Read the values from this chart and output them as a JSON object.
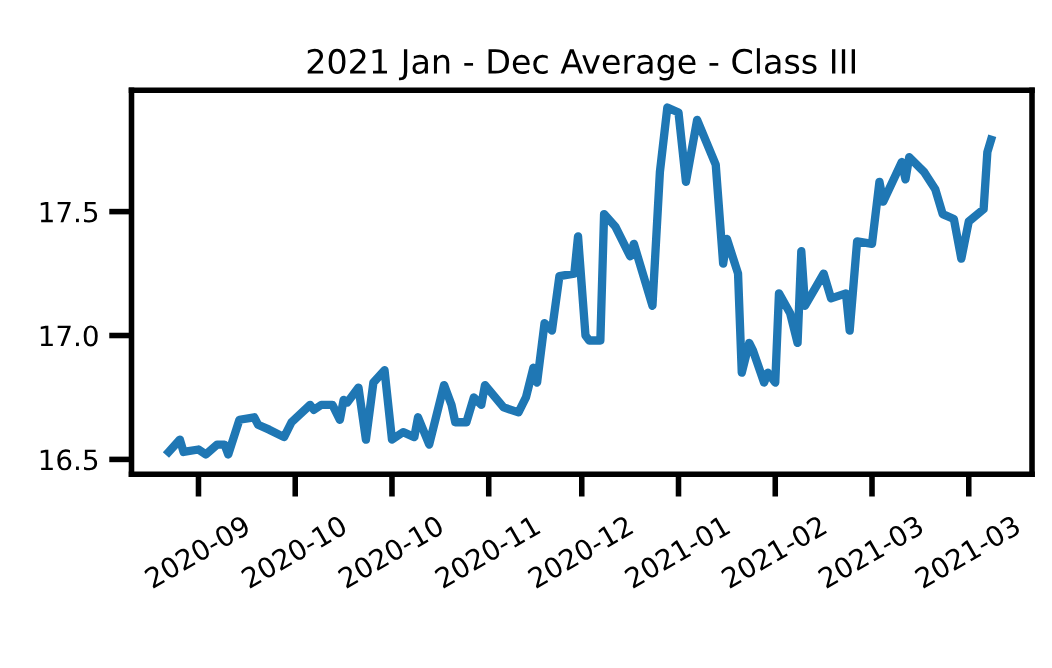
{
  "chart_data": {
    "type": "line",
    "title": "2021 Jan - Dec Average - Class III",
    "x": [
      "2020-08-28",
      "2020-08-31",
      "2020-09-01",
      "2020-09-05",
      "2020-09-07",
      "2020-09-10",
      "2020-09-12",
      "2020-09-13",
      "2020-09-16",
      "2020-09-20",
      "2020-09-21",
      "2020-09-24",
      "2020-09-28",
      "2020-09-30",
      "2020-10-05",
      "2020-10-06",
      "2020-10-08",
      "2020-10-11",
      "2020-10-13",
      "2020-10-14",
      "2020-10-15",
      "2020-10-18",
      "2020-10-20",
      "2020-10-22",
      "2020-10-25",
      "2020-10-27",
      "2020-10-30",
      "2020-11-02",
      "2020-11-03",
      "2020-11-06",
      "2020-11-10",
      "2020-11-12",
      "2020-11-13",
      "2020-11-16",
      "2020-11-18",
      "2020-11-20",
      "2020-11-21",
      "2020-11-26",
      "2020-11-30",
      "2020-12-02",
      "2020-12-04",
      "2020-12-05",
      "2020-12-07",
      "2020-12-09",
      "2020-12-11",
      "2020-12-15",
      "2020-12-16",
      "2020-12-18",
      "2020-12-19",
      "2020-12-22",
      "2020-12-23",
      "2020-12-26",
      "2020-12-30",
      "2020-12-31",
      "2021-01-05",
      "2021-01-07",
      "2021-01-09",
      "2021-01-12",
      "2021-01-14",
      "2021-01-17",
      "2021-01-22",
      "2021-01-24",
      "2021-01-25",
      "2021-01-28",
      "2021-01-29",
      "2021-01-31",
      "2021-02-01",
      "2021-02-04",
      "2021-02-05",
      "2021-02-07",
      "2021-02-08",
      "2021-02-11",
      "2021-02-13",
      "2021-02-14",
      "2021-02-15",
      "2021-02-20",
      "2021-02-22",
      "2021-02-26",
      "2021-02-27",
      "2021-03-01",
      "2021-03-05",
      "2021-03-07",
      "2021-03-08",
      "2021-03-13",
      "2021-03-14",
      "2021-03-15",
      "2021-03-19",
      "2021-03-22",
      "2021-03-24",
      "2021-03-27",
      "2021-03-29",
      "2021-03-31",
      "2021-04-04",
      "2021-04-05",
      "2021-04-06"
    ],
    "series": [
      {
        "color": "#1f77b4",
        "values": [
          16.53,
          16.58,
          16.53,
          16.54,
          16.52,
          16.56,
          16.56,
          16.52,
          16.66,
          16.67,
          16.64,
          16.62,
          16.59,
          16.65,
          16.72,
          16.7,
          16.72,
          16.72,
          16.66,
          16.74,
          16.73,
          16.79,
          16.58,
          16.81,
          16.86,
          16.58,
          16.61,
          16.59,
          16.67,
          16.56,
          16.8,
          16.72,
          16.65,
          16.65,
          16.75,
          16.72,
          16.8,
          16.71,
          16.69,
          16.75,
          16.87,
          16.81,
          17.05,
          17.02,
          17.24,
          17.25,
          17.4,
          17.0,
          16.98,
          16.98,
          17.49,
          17.44,
          17.32,
          17.37,
          17.12,
          17.66,
          17.92,
          17.9,
          17.62,
          17.87,
          17.69,
          17.29,
          17.39,
          17.25,
          16.85,
          16.97,
          16.94,
          16.81,
          16.85,
          16.81,
          17.17,
          17.09,
          16.97,
          17.34,
          17.12,
          17.25,
          17.15,
          17.17,
          17.02,
          17.38,
          17.37,
          17.62,
          17.54,
          17.7,
          17.63,
          17.72,
          17.66,
          17.59,
          17.49,
          17.47,
          17.31,
          17.46,
          17.51,
          17.74,
          17.79
        ]
      }
    ],
    "xlim": [
      "2020-08-18",
      "2021-04-17"
    ],
    "xticks": [
      {
        "value": "2020-09-05",
        "label": "2020-09"
      },
      {
        "value": "2020-10-01",
        "label": "2020-10"
      },
      {
        "value": "2020-10-27",
        "label": "2020-10"
      },
      {
        "value": "2020-11-22",
        "label": "2020-11"
      },
      {
        "value": "2020-12-17",
        "label": "2020-12"
      },
      {
        "value": "2021-01-12",
        "label": "2021-01"
      },
      {
        "value": "2021-02-07",
        "label": "2021-02"
      },
      {
        "value": "2021-03-05",
        "label": "2021-03"
      },
      {
        "value": "2021-03-31",
        "label": "2021-03"
      }
    ],
    "ylim": [
      16.44,
      17.99
    ],
    "yticks": [
      16.5,
      {
        "value": 17.0,
        "label": "17.0"
      },
      17.5
    ],
    "grid": false,
    "legend": false,
    "line_style": "solid",
    "marker": "none"
  }
}
